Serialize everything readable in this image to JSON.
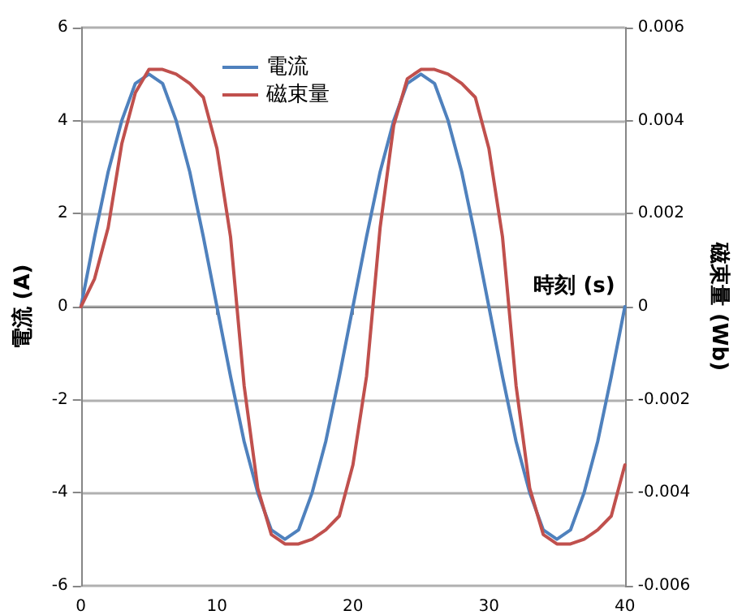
{
  "chart_data": {
    "type": "line",
    "xlabel": "時刻 (s)",
    "ylabel": "電流 (A)",
    "y2label": "磁束量 (Wb)",
    "x": [
      0,
      1,
      2,
      3,
      4,
      5,
      6,
      7,
      8,
      9,
      10,
      11,
      12,
      13,
      14,
      15,
      16,
      17,
      18,
      19,
      20,
      21,
      22,
      23,
      24,
      25,
      26,
      27,
      28,
      29,
      30,
      31,
      32,
      33,
      34,
      35,
      36,
      37,
      38,
      39,
      40
    ],
    "series": [
      {
        "name": "電流",
        "color": "#4f81bd",
        "values": [
          0,
          1.5,
          2.9,
          4,
          4.8,
          5,
          4.8,
          4,
          2.9,
          1.5,
          0,
          -1.5,
          -2.9,
          -4,
          -4.8,
          -5,
          -4.8,
          -4,
          -2.9,
          -1.5,
          0,
          1.5,
          2.9,
          4,
          4.8,
          5,
          4.8,
          4,
          2.9,
          1.5,
          0,
          -1.5,
          -2.9,
          -4,
          -4.8,
          -5,
          -4.8,
          -4,
          -2.9,
          -1.5,
          0
        ]
      },
      {
        "name": "磁束量",
        "color": "#c0504d",
        "axis": "y2",
        "values": [
          0,
          0.0006,
          0.0017,
          0.0035,
          0.0046,
          0.0051,
          0.0051,
          0.005,
          0.0048,
          0.0045,
          0.0034,
          0.0015,
          -0.0017,
          -0.0039,
          -0.0049,
          -0.0051,
          -0.0051,
          -0.005,
          -0.0048,
          -0.0045,
          -0.0034,
          -0.0015,
          0.0017,
          0.0039,
          0.0049,
          0.0051,
          0.0051,
          0.005,
          0.0048,
          0.0045,
          0.0034,
          0.0015,
          -0.0017,
          -0.0039,
          -0.0049,
          -0.0051,
          -0.0051,
          -0.005,
          -0.0048,
          -0.0045,
          -0.0034
        ]
      }
    ],
    "xlim": [
      0,
      40
    ],
    "xticks": [
      0,
      10,
      20,
      30,
      40
    ],
    "ylim": [
      -6,
      6
    ],
    "yticks": [
      -6,
      -4,
      -2,
      0,
      2,
      4,
      6
    ],
    "y2lim": [
      -0.006,
      0.006
    ],
    "y2ticks": [
      -0.006,
      -0.004,
      -0.002,
      0,
      0.002,
      0.004,
      0.006
    ],
    "grid": "y",
    "legend": "top left",
    "marker": "none",
    "line_style": "solid"
  }
}
